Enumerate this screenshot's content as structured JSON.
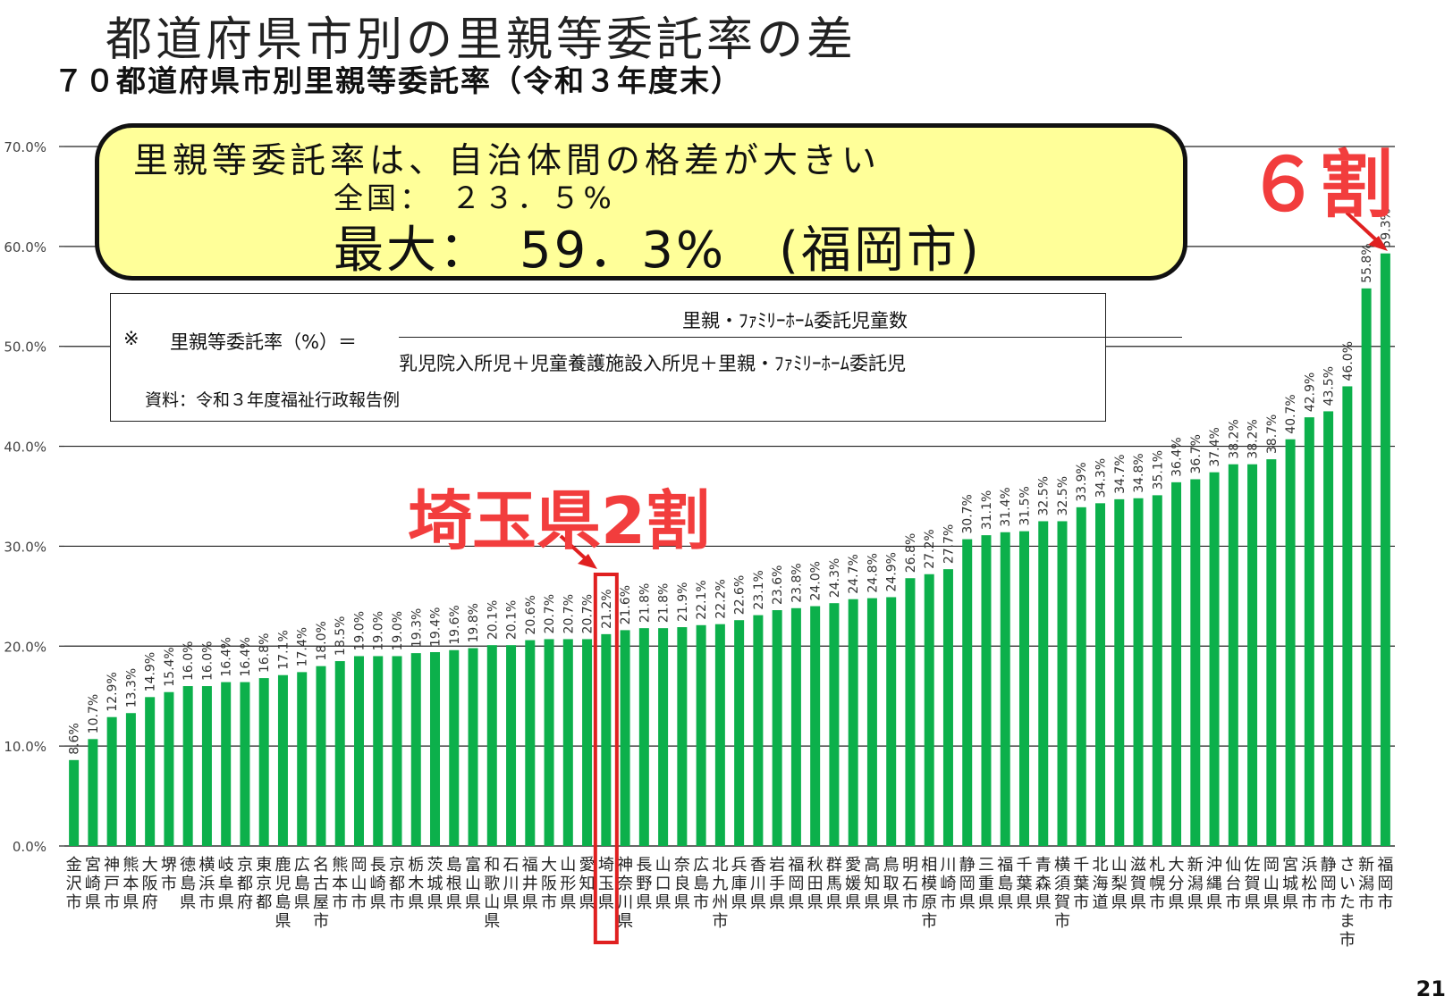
{
  "page": {
    "title": "都道府県市別の里親等委託率の差",
    "subtitle": "７０都道府県市別里親等委託率（令和３年度末）",
    "page_number": "21"
  },
  "callout": {
    "headline": "里親等委託率は、自治体間の格差が大きい",
    "national": "全国：　２３．５%",
    "max": "最大：　59．3%　(福岡市)"
  },
  "formula": {
    "mark": "※",
    "lhs": "里親等委託率（%）＝",
    "numerator": "里親・ﾌｧﾐﾘｰﾎｰﾑ委託児童数",
    "denominator": "乳児院入所児＋児童養護施設入所児＋里親・ﾌｧﾐﾘｰﾎｰﾑ委託児",
    "source": "資料：令和３年度福祉行政報告例"
  },
  "annotations": {
    "top": "６割",
    "saitama": "埼玉県2割"
  },
  "colors": {
    "bar": "#0cb04b",
    "highlight": "#e02020",
    "emphasis": "#f23d3d"
  },
  "chart_data": {
    "type": "bar",
    "ylim": [
      0,
      70
    ],
    "ytick_labels": [
      "0.0%",
      "10.0%",
      "20.0%",
      "30.0%",
      "40.0%",
      "50.0%",
      "60.0%",
      "70.0%"
    ],
    "grid": true,
    "highlight_category": "埼玉県",
    "categories": [
      "金沢市",
      "宮崎県",
      "神戸市",
      "熊本県",
      "大阪府",
      "堺市",
      "徳島県",
      "横浜市",
      "岐阜県",
      "京都府",
      "東京都",
      "鹿児島県",
      "広島県",
      "名古屋市",
      "熊本市",
      "岡山市",
      "長崎県",
      "京都市",
      "栃木県",
      "茨城県",
      "島根県",
      "富山県",
      "和歌山県",
      "石川県",
      "福井県",
      "大阪市",
      "山形県",
      "愛知県",
      "埼玉県",
      "神奈川県",
      "長野県",
      "山口県",
      "奈良県",
      "広島市",
      "北九州市",
      "兵庫県",
      "香川県",
      "岩手県",
      "福岡県",
      "秋田県",
      "群馬県",
      "愛媛県",
      "高知県",
      "鳥取県",
      "明石市",
      "相模原市",
      "川崎市",
      "静岡県",
      "三重県",
      "福島県",
      "千葉県",
      "青森県",
      "横須賀市",
      "千葉市",
      "北海道",
      "山梨県",
      "滋賀県",
      "札幌市",
      "大分県",
      "新潟県",
      "沖縄県",
      "仙台市",
      "佐賀県",
      "岡山県",
      "宮城県",
      "浜松市",
      "静岡市",
      "さいたま市",
      "新潟市",
      "福岡市"
    ],
    "values": [
      8.6,
      10.7,
      12.9,
      13.3,
      14.9,
      15.4,
      16.0,
      16.0,
      16.4,
      16.4,
      16.8,
      17.1,
      17.4,
      18.0,
      18.5,
      19.0,
      19.0,
      19.0,
      19.3,
      19.4,
      19.6,
      19.8,
      20.1,
      20.1,
      20.6,
      20.7,
      20.7,
      20.7,
      21.2,
      21.6,
      21.8,
      21.8,
      21.9,
      22.1,
      22.2,
      22.6,
      23.1,
      23.6,
      23.8,
      24.0,
      24.3,
      24.7,
      24.8,
      24.9,
      26.8,
      27.2,
      27.7,
      30.7,
      31.1,
      31.4,
      31.5,
      32.5,
      32.5,
      33.9,
      34.3,
      34.7,
      34.8,
      35.1,
      36.4,
      36.7,
      37.4,
      38.2,
      38.2,
      38.7,
      40.7,
      42.9,
      43.5,
      46.0,
      55.8,
      59.3
    ],
    "value_labels": [
      "8.6%",
      "10.7%",
      "12.9%",
      "13.3%",
      "14.9%",
      "15.4%",
      "16.0%",
      "16.0%",
      "16.4%",
      "16.4%",
      "16.8%",
      "17.1%",
      "17.4%",
      "18.0%",
      "18.5%",
      "19.0%",
      "19.0%",
      "19.0%",
      "19.3%",
      "19.4%",
      "19.6%",
      "19.8%",
      "20.1%",
      "20.1%",
      "20.6%",
      "20.7%",
      "20.7%",
      "20.7%",
      "21.2%",
      "21.6%",
      "21.8%",
      "21.8%",
      "21.9%",
      "22.1%",
      "22.2%",
      "22.6%",
      "23.1%",
      "23.6%",
      "23.8%",
      "24.0%",
      "24.3%",
      "24.7%",
      "24.8%",
      "24.9%",
      "26.8%",
      "27.2%",
      "27.7%",
      "30.7%",
      "31.1%",
      "31.4%",
      "31.5%",
      "32.5%",
      "32.5%",
      "33.9%",
      "34.3%",
      "34.7%",
      "34.8%",
      "35.1%",
      "36.4%",
      "36.7%",
      "37.4%",
      "38.2%",
      "38.2%",
      "38.7%",
      "40.7%",
      "42.9%",
      "43.5%",
      "46.0%",
      "55.8%",
      "59.3%"
    ]
  }
}
